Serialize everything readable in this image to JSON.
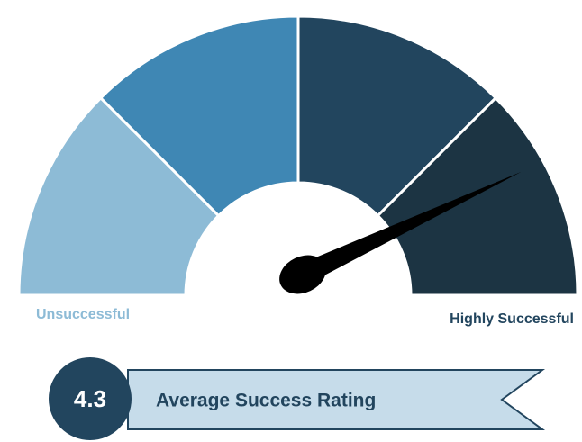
{
  "chart_data": {
    "type": "gauge",
    "value": 4.3,
    "min": 0,
    "max": 5,
    "min_label": "Unsuccessful",
    "max_label": "Highly Successful",
    "title": "Average Success Rating",
    "bands": [
      {
        "from": 0,
        "to": 1.25,
        "color": "#8dbbd6"
      },
      {
        "from": 1.25,
        "to": 2.5,
        "color": "#3f87b4"
      },
      {
        "from": 2.5,
        "to": 3.75,
        "color": "#22455e"
      },
      {
        "from": 3.75,
        "to": 5,
        "color": "#1c3443"
      }
    ],
    "needle_color": "#000000"
  }
}
